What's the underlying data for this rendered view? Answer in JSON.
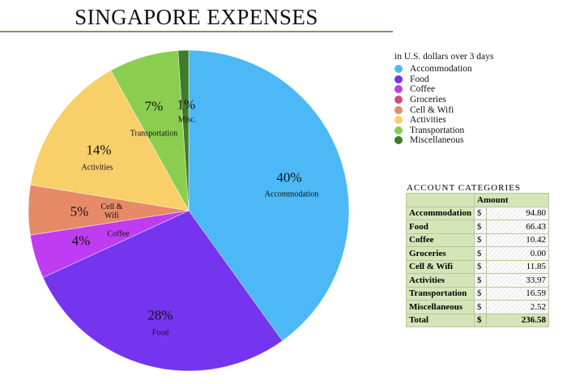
{
  "chart_data": {
    "type": "pie",
    "title": "SINGAPORE EXPENSES",
    "subtitle": "in U.S. dollars over 3 days",
    "legend_position": "right",
    "slices": [
      {
        "name": "Accommodation",
        "label": "Accommodation",
        "value": 94.8,
        "percent": "40%",
        "color": "#4cb9f6"
      },
      {
        "name": "Food",
        "label": "Food",
        "value": 66.43,
        "percent": "28%",
        "color": "#7535ef"
      },
      {
        "name": "Coffee",
        "label": "Coffee",
        "value": 10.42,
        "percent": "4%",
        "color": "#c03cf2"
      },
      {
        "name": "Groceries",
        "label": "",
        "value": 0.0,
        "percent": "",
        "color": "#d24b7d"
      },
      {
        "name": "Cell & Wifi",
        "label": "Cell & Wifi",
        "value": 11.85,
        "percent": "5%",
        "color": "#e68a68"
      },
      {
        "name": "Activities",
        "label": "Activities",
        "value": 33.97,
        "percent": "14%",
        "color": "#f8cf69"
      },
      {
        "name": "Transportation",
        "label": "Transportation",
        "value": 16.59,
        "percent": "7%",
        "color": "#8bce4f"
      },
      {
        "name": "Miscellaneous",
        "label": "Misc.",
        "value": 2.52,
        "percent": "1%",
        "color": "#3f7b29"
      }
    ]
  },
  "table": {
    "title": "ACCOUNT CATEGORIES",
    "header": "Amount",
    "currency": "$",
    "rows": [
      {
        "name": "Accommodation",
        "amount": "94.80"
      },
      {
        "name": "Food",
        "amount": "66.43"
      },
      {
        "name": "Coffee",
        "amount": "10.42"
      },
      {
        "name": "Groceries",
        "amount": "0.00"
      },
      {
        "name": "Cell & Wifi",
        "amount": "11.85"
      },
      {
        "name": "Activities",
        "amount": "33.97"
      },
      {
        "name": "Transportation",
        "amount": "16.59"
      },
      {
        "name": "Miscellaneous",
        "amount": "2.52"
      }
    ],
    "total_label": "Total",
    "total": "236.58"
  }
}
